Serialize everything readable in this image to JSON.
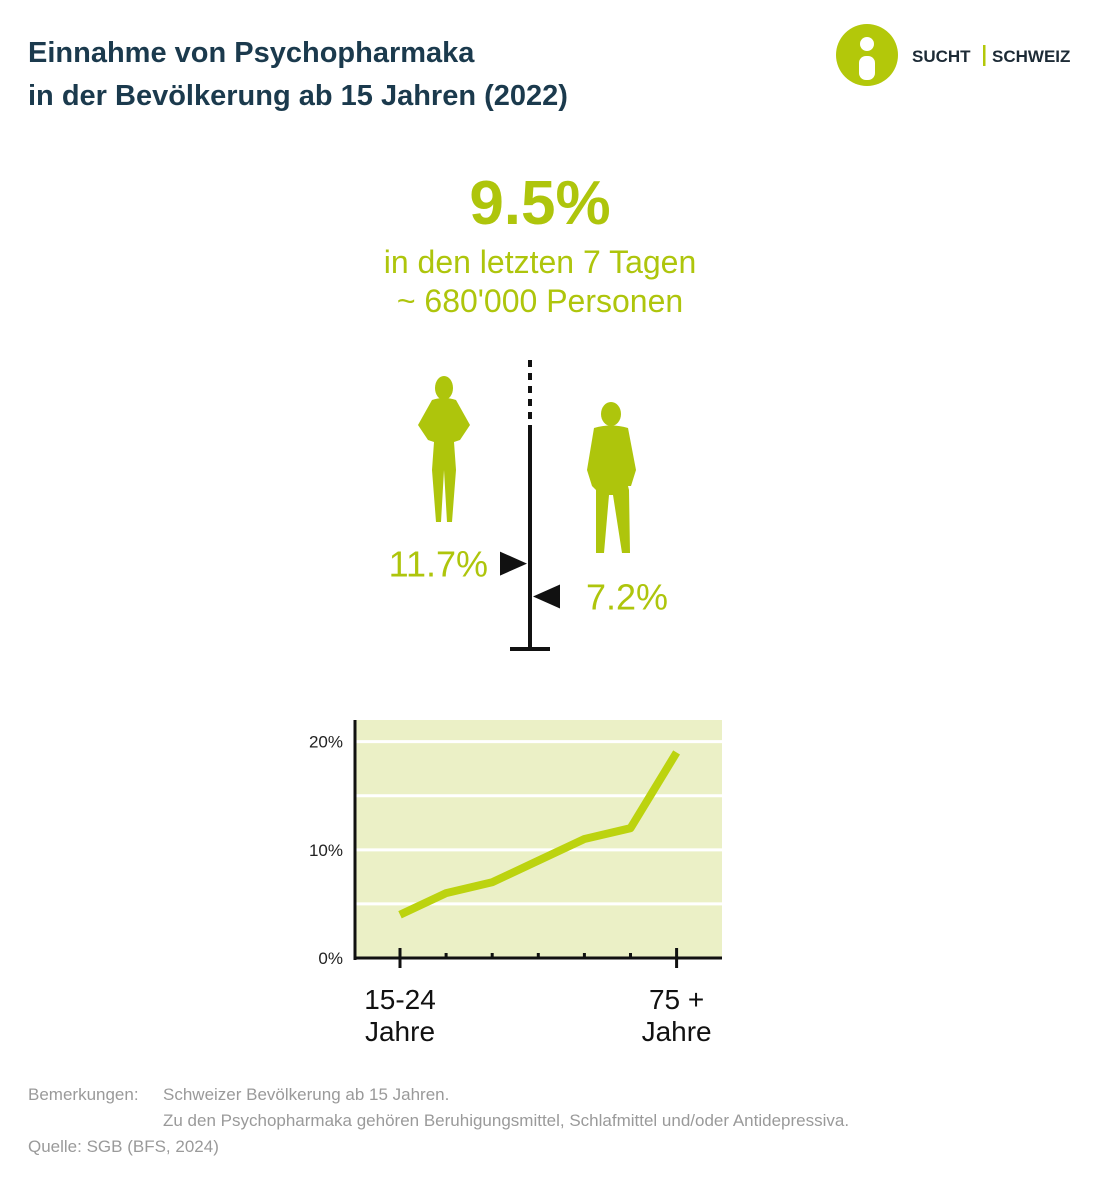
{
  "header": {
    "title": [
      "Einnahme von Psychopharmaka",
      "in der Bevölkerung ab 15 Jahren (2022)"
    ],
    "logo": [
      "SUCHT",
      "SCHWEIZ"
    ]
  },
  "chart_data": [
    {
      "type": "marker",
      "title": "9.5%",
      "subtitle": [
        "in den letzten 7 Tagen",
        "~ 680'000 Personen"
      ],
      "values": [
        11.7,
        7.2
      ],
      "value_labels": [
        "11.7%",
        "7.2%"
      ],
      "ylim": [
        0,
        30
      ],
      "color": "#aec50c"
    },
    {
      "type": "line",
      "categories": [
        "15-24 Jahre",
        null,
        null,
        null,
        null,
        null,
        "75 + Jahre"
      ],
      "values": [
        4,
        6,
        7,
        9,
        11,
        12,
        19
      ],
      "color": "#bcd30f",
      "ylim": [
        0,
        22
      ],
      "yticks": [
        {
          "value": 0,
          "label": "0%"
        },
        {
          "value": 10,
          "label": "10%"
        },
        {
          "value": 20,
          "label": "20%"
        }
      ],
      "minor_yticks": [
        5,
        15
      ],
      "grid": true
    }
  ],
  "notes": {
    "label": "Bemerkungen:",
    "lines": [
      "Schweizer Bevölkerung ab 15 Jahren.",
      "Zu den Psychopharmaka gehören Beruhigungsmittel, Schlafmittel und/oder Antidepressiva."
    ],
    "source": "Quelle: SGB (BFS, 2024)"
  }
}
